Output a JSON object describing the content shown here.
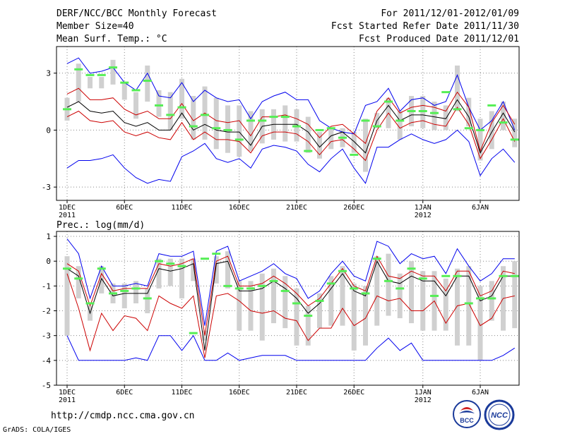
{
  "header": {
    "title": "DERF/NCC/BCC Monthly Forecast",
    "member_size": "Member Size=40",
    "for_range": "For 2011/12/01-2012/01/09",
    "fcst_started": "Fcst Started Refer Date 2011/11/30",
    "fcst_produced": "Fcst Produced Date 2011/12/01"
  },
  "footer": {
    "url": "http://cmdp.ncc.cma.gov.cn",
    "grads_credit": "GrADS: COLA/IGES",
    "logo_bcc_text": "BCC",
    "logo_ncc_text": "NCC"
  },
  "colors": {
    "outer": "#0000ee",
    "inner": "#cc0000",
    "mean": "#000000",
    "box": "#d0d0d0",
    "marker": "#55ee55",
    "grid": "#888888"
  },
  "chart_data": [
    {
      "type": "line",
      "title": "Mean Surf. Temp.: °C",
      "x": [
        "1",
        "2",
        "3",
        "4",
        "5",
        "6",
        "7",
        "8",
        "9",
        "10",
        "11",
        "12",
        "13",
        "14",
        "15",
        "16",
        "17",
        "18",
        "19",
        "20",
        "21",
        "22",
        "23",
        "24",
        "25",
        "26",
        "27",
        "28",
        "29",
        "30",
        "31",
        "32",
        "33",
        "34",
        "35",
        "36",
        "37",
        "38",
        "39",
        "40"
      ],
      "x_ticks": [
        {
          "day": 1,
          "label": "1DEC",
          "sub": "2011"
        },
        {
          "day": 6,
          "label": "6DEC"
        },
        {
          "day": 11,
          "label": "11DEC"
        },
        {
          "day": 16,
          "label": "16DEC"
        },
        {
          "day": 21,
          "label": "21DEC"
        },
        {
          "day": 26,
          "label": "26DEC"
        },
        {
          "day": 32,
          "label": "1JAN",
          "sub": "2012"
        },
        {
          "day": 37,
          "label": "6JAN"
        }
      ],
      "y_ticks": [
        -3,
        0,
        3
      ],
      "ylim": [
        -3.7,
        4.4
      ],
      "series": [
        {
          "name": "max",
          "role": "outer",
          "values": [
            3.5,
            3.8,
            3.0,
            3.1,
            3.3,
            2.5,
            2.1,
            3.0,
            1.8,
            1.7,
            2.5,
            1.5,
            2.1,
            1.7,
            1.5,
            1.6,
            0.6,
            1.5,
            1.8,
            2.0,
            1.6,
            1.6,
            0.5,
            0.1,
            -0.1,
            -0.2,
            1.3,
            1.5,
            2.2,
            1.0,
            1.6,
            1.7,
            1.3,
            1.5,
            2.9,
            1.2,
            0.0,
            0.5,
            1.5,
            0.0
          ]
        },
        {
          "name": "upper",
          "role": "inner",
          "values": [
            1.9,
            2.2,
            1.6,
            1.6,
            1.7,
            1.1,
            0.8,
            1.0,
            0.6,
            0.6,
            1.4,
            0.5,
            0.9,
            0.5,
            0.4,
            0.5,
            -0.3,
            0.7,
            0.7,
            0.8,
            0.6,
            0.3,
            -0.4,
            0.2,
            0.3,
            -0.2,
            -0.7,
            1.0,
            1.7,
            0.9,
            1.2,
            1.3,
            1.2,
            1.0,
            2.0,
            1.2,
            -1.1,
            0.4,
            1.3,
            0.3
          ]
        },
        {
          "name": "mean",
          "role": "mean",
          "values": [
            1.2,
            1.5,
            1.0,
            0.9,
            1.0,
            0.4,
            0.2,
            0.4,
            0.0,
            0.0,
            0.9,
            0.0,
            0.3,
            0.0,
            -0.1,
            -0.1,
            -0.8,
            0.2,
            0.3,
            0.3,
            0.3,
            -0.1,
            -0.9,
            -0.3,
            -0.1,
            -0.6,
            -1.2,
            0.5,
            1.3,
            0.5,
            0.8,
            0.8,
            0.7,
            0.6,
            1.6,
            0.7,
            -1.2,
            -0.1,
            0.9,
            -0.1
          ]
        },
        {
          "name": "lower",
          "role": "inner",
          "values": [
            0.7,
            1.0,
            0.5,
            0.4,
            0.5,
            -0.1,
            -0.3,
            -0.1,
            -0.4,
            -0.5,
            0.4,
            -0.5,
            -0.1,
            -0.5,
            -0.5,
            -0.6,
            -1.2,
            -0.3,
            -0.1,
            -0.1,
            -0.2,
            -0.6,
            -1.3,
            -0.6,
            -0.5,
            -1.0,
            -1.6,
            0.0,
            0.9,
            0.1,
            0.4,
            0.5,
            0.3,
            0.2,
            1.2,
            0.3,
            -1.5,
            -0.5,
            0.6,
            -0.6
          ]
        },
        {
          "name": "min",
          "role": "outer",
          "values": [
            -2.0,
            -1.6,
            -1.6,
            -1.5,
            -1.3,
            -2.0,
            -2.5,
            -2.8,
            -2.6,
            -2.7,
            -1.4,
            -1.1,
            -0.7,
            -1.5,
            -1.7,
            -1.5,
            -2.0,
            -1.0,
            -0.8,
            -0.9,
            -1.1,
            -1.8,
            -2.2,
            -1.5,
            -1.0,
            -2.0,
            -2.8,
            -0.9,
            -0.9,
            -0.5,
            -0.2,
            -0.5,
            -0.7,
            -0.5,
            0.0,
            -0.6,
            -2.4,
            -1.5,
            -1.0,
            -1.7
          ]
        },
        {
          "name": "box_high",
          "role": "box",
          "values": [
            1.7,
            3.5,
            2.8,
            2.8,
            3.7,
            2.5,
            2.0,
            3.4,
            2.1,
            2.0,
            2.7,
            1.8,
            2.3,
            1.7,
            1.3,
            1.3,
            1.0,
            1.1,
            1.1,
            1.3,
            1.1,
            0.7,
            -0.1,
            0.1,
            0.1,
            -0.1,
            0.6,
            0.9,
            1.7,
            1.0,
            1.8,
            1.8,
            1.5,
            1.3,
            3.4,
            1.7,
            0.6,
            1.0,
            1.5,
            0.6
          ]
        },
        {
          "name": "box_low",
          "role": "box",
          "values": [
            0.5,
            1.5,
            2.2,
            2.2,
            2.4,
            1.6,
            0.6,
            1.5,
            0.7,
            0.0,
            0.6,
            -0.5,
            -0.5,
            -1.0,
            -1.2,
            -1.4,
            -1.1,
            -0.7,
            -0.5,
            -0.6,
            -0.6,
            -1.2,
            -1.5,
            -1.0,
            -0.9,
            -1.2,
            -2.2,
            0.1,
            0.1,
            -0.5,
            0.2,
            0.1,
            0.0,
            0.0,
            1.0,
            0.2,
            -1.6,
            -1.0,
            0.0,
            -0.9
          ]
        },
        {
          "name": "marker",
          "role": "marker",
          "values": [
            1.1,
            3.2,
            2.9,
            2.9,
            3.3,
            2.5,
            2.1,
            2.6,
            1.3,
            0.8,
            1.2,
            0.2,
            0.8,
            0.1,
            0.0,
            -0.5,
            0.5,
            0.5,
            0.7,
            0.7,
            0.2,
            -1.1,
            0.0,
            0.1,
            -0.4,
            -1.3,
            0.5,
            0.2,
            1.5,
            0.5,
            1.0,
            1.0,
            0.9,
            2.0,
            1.1,
            0.1,
            0.0,
            1.3,
            0.4,
            -0.5
          ]
        }
      ]
    },
    {
      "type": "line",
      "title": "Prec.: log(mm/d)",
      "x": [
        "1",
        "2",
        "3",
        "4",
        "5",
        "6",
        "7",
        "8",
        "9",
        "10",
        "11",
        "12",
        "13",
        "14",
        "15",
        "16",
        "17",
        "18",
        "19",
        "20",
        "21",
        "22",
        "23",
        "24",
        "25",
        "26",
        "27",
        "28",
        "29",
        "30",
        "31",
        "32",
        "33",
        "34",
        "35",
        "36",
        "37",
        "38",
        "39",
        "40"
      ],
      "x_ticks": [
        {
          "day": 1,
          "label": "1DEC",
          "sub": "2011"
        },
        {
          "day": 6,
          "label": "6DEC"
        },
        {
          "day": 11,
          "label": "11DEC"
        },
        {
          "day": 16,
          "label": "16DEC"
        },
        {
          "day": 21,
          "label": "21DEC"
        },
        {
          "day": 26,
          "label": "26DEC"
        },
        {
          "day": 32,
          "label": "1JAN",
          "sub": "2012"
        },
        {
          "day": 37,
          "label": "6JAN"
        }
      ],
      "y_ticks": [
        -5,
        -4,
        -3,
        -2,
        -1,
        0,
        1
      ],
      "ylim": [
        -5,
        1.2
      ],
      "series": [
        {
          "name": "max",
          "role": "outer",
          "values": [
            0.9,
            0.3,
            -1.5,
            -0.2,
            -1.0,
            -1.0,
            -0.9,
            -1.0,
            0.3,
            0.2,
            0.2,
            0.4,
            -2.6,
            0.4,
            0.6,
            -0.8,
            -0.6,
            -0.4,
            -0.1,
            -0.5,
            -0.7,
            -1.5,
            -1.2,
            -0.5,
            0.0,
            -0.6,
            -0.8,
            0.8,
            0.6,
            -0.1,
            0.3,
            0.1,
            0.2,
            -0.5,
            0.5,
            -0.2,
            -0.8,
            -0.5,
            0.1,
            0.1
          ]
        },
        {
          "name": "upper",
          "role": "inner",
          "values": [
            -0.1,
            -0.4,
            -1.8,
            -0.5,
            -1.2,
            -1.1,
            -1.1,
            -1.1,
            -0.1,
            -0.2,
            -0.1,
            0.1,
            -3.0,
            0.0,
            0.2,
            -1.0,
            -1.0,
            -0.9,
            -0.6,
            -0.9,
            -1.3,
            -1.8,
            -1.5,
            -0.9,
            -0.3,
            -1.0,
            -1.2,
            0.2,
            -0.6,
            -0.7,
            -0.4,
            -0.6,
            -0.6,
            -1.2,
            -0.4,
            -0.4,
            -1.4,
            -1.2,
            -0.4,
            -0.5
          ]
        },
        {
          "name": "mean",
          "role": "mean",
          "values": [
            -0.3,
            -0.6,
            -2.1,
            -0.7,
            -1.4,
            -1.3,
            -1.3,
            -1.3,
            -0.3,
            -0.4,
            -0.3,
            -0.1,
            -3.6,
            -0.1,
            0.0,
            -1.2,
            -1.2,
            -1.1,
            -0.8,
            -1.1,
            -1.5,
            -2.1,
            -1.7,
            -1.1,
            -0.5,
            -1.2,
            -1.4,
            0.0,
            -0.8,
            -0.9,
            -0.6,
            -0.8,
            -0.8,
            -1.4,
            -0.6,
            -0.6,
            -1.6,
            -1.4,
            -0.6,
            -0.6
          ]
        },
        {
          "name": "lower",
          "role": "inner",
          "values": [
            -0.5,
            -1.9,
            -3.6,
            -2.1,
            -2.8,
            -2.2,
            -2.3,
            -2.8,
            -1.4,
            -1.7,
            -1.9,
            -1.4,
            -3.9,
            -1.4,
            -1.3,
            -1.6,
            -2.0,
            -2.1,
            -2.0,
            -2.3,
            -2.4,
            -3.2,
            -2.7,
            -2.7,
            -1.9,
            -2.6,
            -2.3,
            -1.4,
            -1.6,
            -1.5,
            -2.0,
            -2.0,
            -1.6,
            -2.5,
            -1.8,
            -1.7,
            -2.6,
            -2.3,
            -1.5,
            -1.4
          ]
        },
        {
          "name": "min",
          "role": "outer",
          "values": [
            -3.0,
            -4.0,
            -4.0,
            -4.0,
            -4.0,
            -4.0,
            -3.9,
            -4.0,
            -3.0,
            -3.0,
            -3.6,
            -3.0,
            -4.0,
            -4.0,
            -3.7,
            -4.0,
            -3.9,
            -3.8,
            -3.8,
            -3.8,
            -4.0,
            -4.0,
            -4.0,
            -4.0,
            -4.0,
            -4.0,
            -4.0,
            -3.5,
            -3.1,
            -3.6,
            -3.3,
            -4.0,
            -4.0,
            -4.0,
            -4.0,
            -4.0,
            -4.0,
            -4.0,
            -3.8,
            -3.5
          ]
        },
        {
          "name": "box_high",
          "role": "box",
          "values": [
            0.2,
            -0.2,
            -1.8,
            -0.2,
            -0.9,
            -0.9,
            -0.8,
            -1.1,
            0.1,
            0.1,
            0.1,
            0.1,
            -2.8,
            0.2,
            0.4,
            -0.8,
            -0.8,
            -0.5,
            -0.3,
            -0.6,
            -1.1,
            -1.8,
            -1.3,
            -0.6,
            -0.2,
            -0.9,
            -1.0,
            0.2,
            0.3,
            -0.5,
            0.0,
            -0.4,
            -0.4,
            -0.7,
            -0.3,
            -0.2,
            -1.0,
            -0.8,
            -0.2,
            0.0
          ]
        },
        {
          "name": "box_low",
          "role": "box",
          "values": [
            -3.0,
            -1.5,
            -2.4,
            -1.3,
            -1.7,
            -1.9,
            -1.7,
            -2.1,
            -1.1,
            -1.0,
            -1.5,
            -0.8,
            -3.2,
            -0.9,
            -1.1,
            -2.8,
            -2.8,
            -3.2,
            -2.5,
            -2.7,
            -3.4,
            -3.4,
            -2.7,
            -2.6,
            -2.6,
            -3.6,
            -3.4,
            -2.6,
            -2.2,
            -2.3,
            -2.5,
            -2.8,
            -2.8,
            -2.8,
            -3.4,
            -3.4,
            -4.0,
            -2.4,
            -2.8,
            -2.7
          ]
        },
        {
          "name": "marker",
          "role": "marker",
          "values": [
            -0.3,
            -0.7,
            -1.7,
            -0.3,
            -1.3,
            -1.2,
            -1.1,
            -1.5,
            0.0,
            -0.1,
            -0.2,
            -2.9,
            0.1,
            0.3,
            -1.0,
            -1.1,
            -1.1,
            -1.0,
            -0.8,
            -1.2,
            -1.7,
            -2.2,
            -1.6,
            -0.9,
            -0.4,
            -1.1,
            -1.3,
            0.1,
            -0.8,
            -1.1,
            -0.3,
            -0.7,
            -1.4,
            -0.6,
            -0.6,
            -1.7,
            -1.5,
            -1.5,
            -0.6,
            -0.6
          ]
        }
      ]
    }
  ]
}
